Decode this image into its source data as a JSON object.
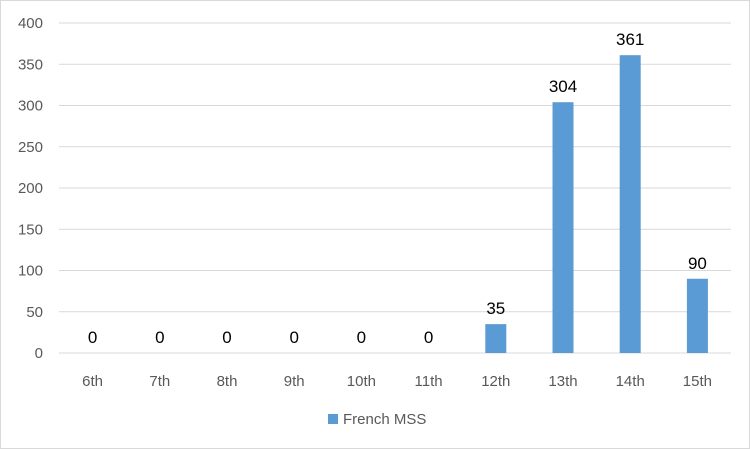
{
  "chart_data": {
    "type": "bar",
    "categories": [
      "6th",
      "7th",
      "8th",
      "9th",
      "10th",
      "11th",
      "12th",
      "13th",
      "14th",
      "15th"
    ],
    "series": [
      {
        "name": "French MSS",
        "values": [
          0,
          0,
          0,
          0,
          0,
          0,
          35,
          304,
          361,
          90
        ],
        "color": "#5b9bd5"
      }
    ],
    "ylim": [
      0,
      400
    ],
    "yticks": [
      0,
      50,
      100,
      150,
      200,
      250,
      300,
      350,
      400
    ],
    "grid": true,
    "gridColor": "#d9d9d9",
    "legend": "bottom-center",
    "data_labels": true
  }
}
